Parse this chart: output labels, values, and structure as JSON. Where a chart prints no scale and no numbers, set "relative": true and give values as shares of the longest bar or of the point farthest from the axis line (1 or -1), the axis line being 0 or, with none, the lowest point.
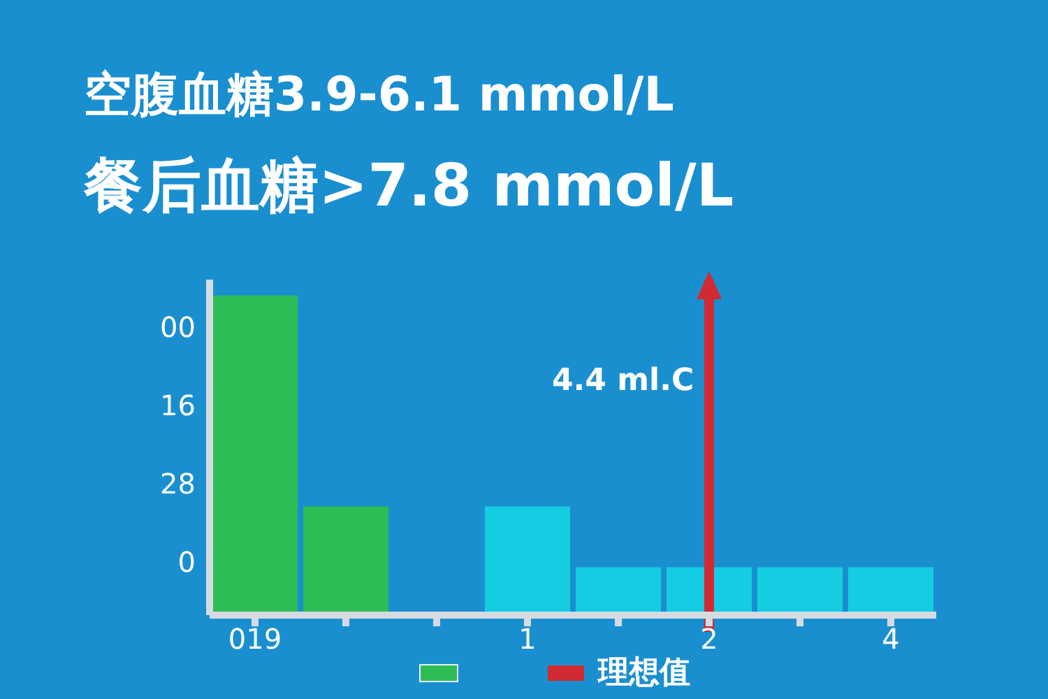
{
  "chart_data": {
    "type": "bar",
    "relative": true,
    "title": "空腹血糖3.9-6.1 mmol/L",
    "subtitle": "餐后血糖>7.8 mmol/L",
    "categories": [
      "019",
      null,
      null,
      "1",
      null,
      "2",
      null,
      "4"
    ],
    "values": [
      1,
      0.34,
      null,
      0.34,
      0.15,
      0.15,
      0.15,
      0.15
    ],
    "colors": [
      "#2ebd55",
      "#2ebd55",
      "#2ebd55",
      "#14cde2",
      "#14cde2",
      "#14cde2",
      "#14cde2",
      "#14cde2"
    ],
    "ref_lines": [
      {
        "axis": "x",
        "value": "2",
        "label": "理想值",
        "color": "#d12a33"
      }
    ],
    "annotations": [
      "4.4 ml.C",
      "00",
      "16",
      "28",
      "0"
    ],
    "legend": "bottom"
  }
}
